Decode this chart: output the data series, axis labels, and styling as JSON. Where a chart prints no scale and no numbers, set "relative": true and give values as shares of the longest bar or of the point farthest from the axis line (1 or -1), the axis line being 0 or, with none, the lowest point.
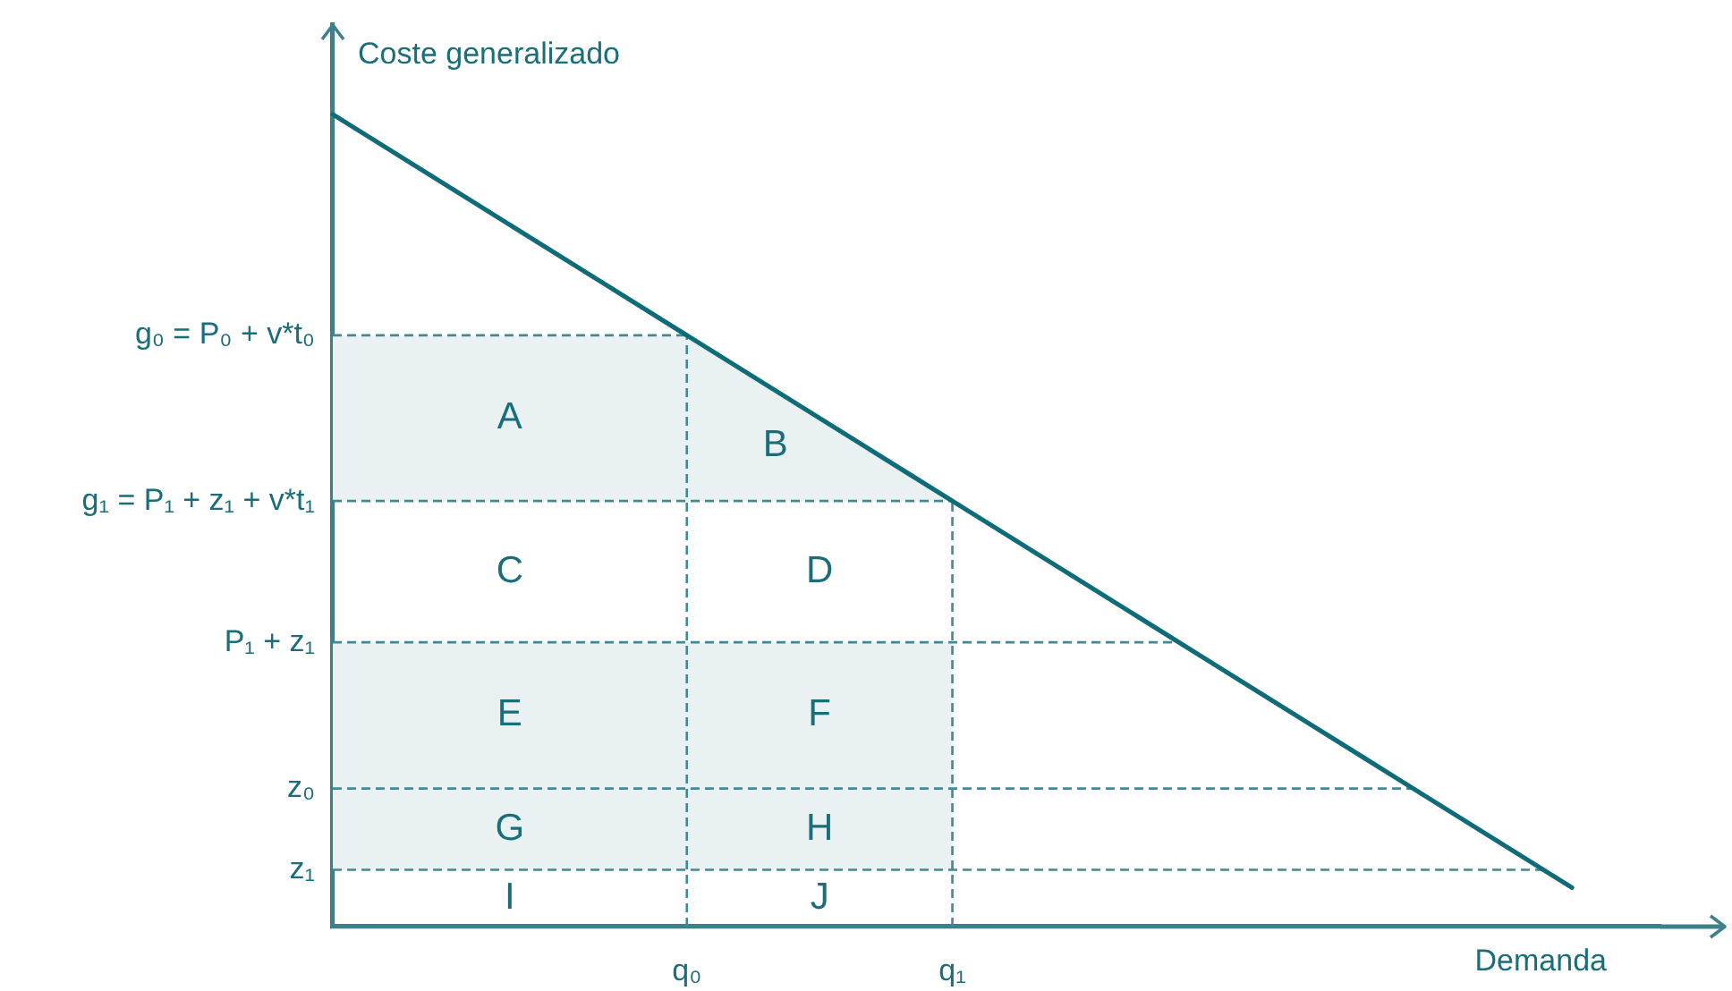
{
  "chart_data": {
    "type": "line",
    "relative": true,
    "xlabel": "Demanda",
    "ylabel": "Coste generalizado",
    "categories": [
      null,
      null,
      null,
      null,
      "q₀",
      null,
      null,
      "q₁",
      null,
      null,
      null,
      null,
      null,
      null,
      null,
      null
    ],
    "series": [
      {
        "color": "#0e6b78",
        "values": [
          1,
          0.932,
          0.864,
          0.796,
          0.728,
          0.66,
          0.592,
          0.524,
          0.456,
          0.388,
          0.32,
          0.252,
          0.184,
          0.116,
          0.048,
          null
        ]
      }
    ],
    "marker": "none",
    "tick_labels": "x",
    "ref_lines": [
      {
        "axis": "y",
        "value": 0.728,
        "label": "g₀ = P₀ + v*t₀",
        "color": "#3f8a95",
        "line_style": "dashed"
      },
      {
        "axis": "y",
        "value": 0.524,
        "label": "g₁ = P₁ + z₁ + v*t₁",
        "color": "#3f8a95",
        "line_style": "dashed"
      },
      {
        "axis": "y",
        "value": 0.35,
        "label": "P₁ + z₁",
        "color": "#3f8a95",
        "line_style": "dashed"
      },
      {
        "axis": "y",
        "value": 0.17,
        "label": "z₀",
        "color": "#3f8a95",
        "line_style": "dashed"
      },
      {
        "axis": "y",
        "value": 0.07,
        "label": "z₁",
        "color": "#3f8a95",
        "line_style": "dashed"
      },
      {
        "axis": "x",
        "value": "q₀",
        "color": "#3f8a95",
        "line_style": "dashed"
      },
      {
        "axis": "x",
        "value": "q₁",
        "color": "#3f8a95",
        "line_style": "dashed"
      }
    ],
    "bands": [
      {
        "axis": "y",
        "from": 0.524,
        "to": 0.728,
        "color": "#e9f1f3"
      },
      {
        "axis": "y",
        "from": 0.07,
        "to": 0.35,
        "color": "#e9f1f3"
      }
    ],
    "annotations": [
      "A",
      "B",
      "C",
      "D",
      "E",
      "F",
      "G",
      "H",
      "I",
      "J"
    ]
  }
}
